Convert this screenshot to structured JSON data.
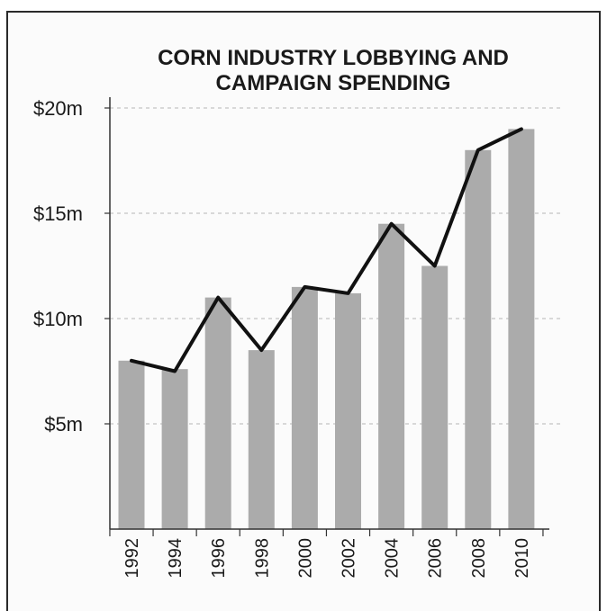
{
  "chart_data": {
    "type": "bar",
    "title": "CORN INDUSTRY LOBBYING AND CAMPAIGN SPENDING",
    "title_lines": [
      "CORN INDUSTRY LOBBYING AND",
      "CAMPAIGN SPENDING"
    ],
    "categories": [
      "1992",
      "1994",
      "1996",
      "1998",
      "2000",
      "2002",
      "2004",
      "2006",
      "2008",
      "2010"
    ],
    "series": [
      {
        "type": "bar",
        "values": [
          8.0,
          7.6,
          11.0,
          8.5,
          11.5,
          11.2,
          14.5,
          12.5,
          18.0,
          19.0
        ],
        "color": "#ababab"
      },
      {
        "type": "line",
        "values": [
          8.0,
          7.5,
          11.0,
          8.5,
          11.5,
          11.2,
          14.5,
          12.5,
          18.0,
          19.0
        ],
        "color": "#111111"
      }
    ],
    "yticks": [
      {
        "value": 5,
        "label": "$5m"
      },
      {
        "value": 10,
        "label": "$10m"
      },
      {
        "value": 15,
        "label": "$15m"
      },
      {
        "value": 20,
        "label": "$20m"
      }
    ],
    "ylim": [
      0,
      20
    ],
    "xlabel": "",
    "ylabel": "",
    "grid": "horizontal-dashed",
    "legend": "none"
  }
}
